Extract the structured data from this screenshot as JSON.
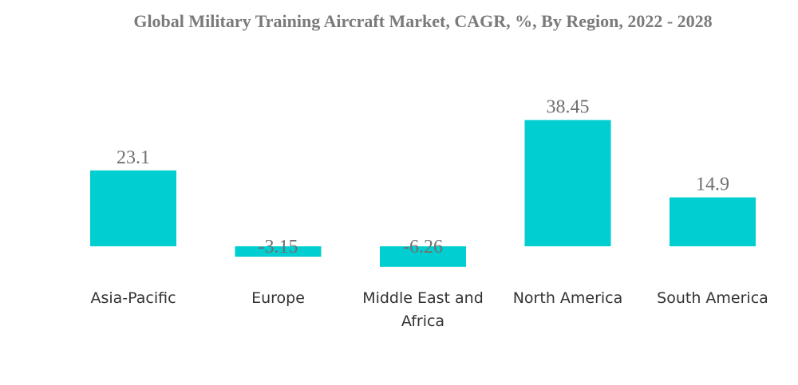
{
  "chart_data": {
    "type": "bar",
    "title": "Global Military Training Aircraft Market, CAGR, %, By Region, 2022 - 2028",
    "categories": [
      [
        "Asia-Pacific"
      ],
      [
        "Europe"
      ],
      [
        "Middle East and",
        "Africa"
      ],
      [
        "North America"
      ],
      [
        "South America"
      ]
    ],
    "values": [
      23.1,
      -3.15,
      -6.26,
      38.45,
      14.9
    ],
    "value_labels": [
      "23.1",
      "-3.15",
      "-6.26",
      "38.45",
      "14.9"
    ],
    "bar_color": "#00CED1",
    "grid": false,
    "legend": "none"
  }
}
